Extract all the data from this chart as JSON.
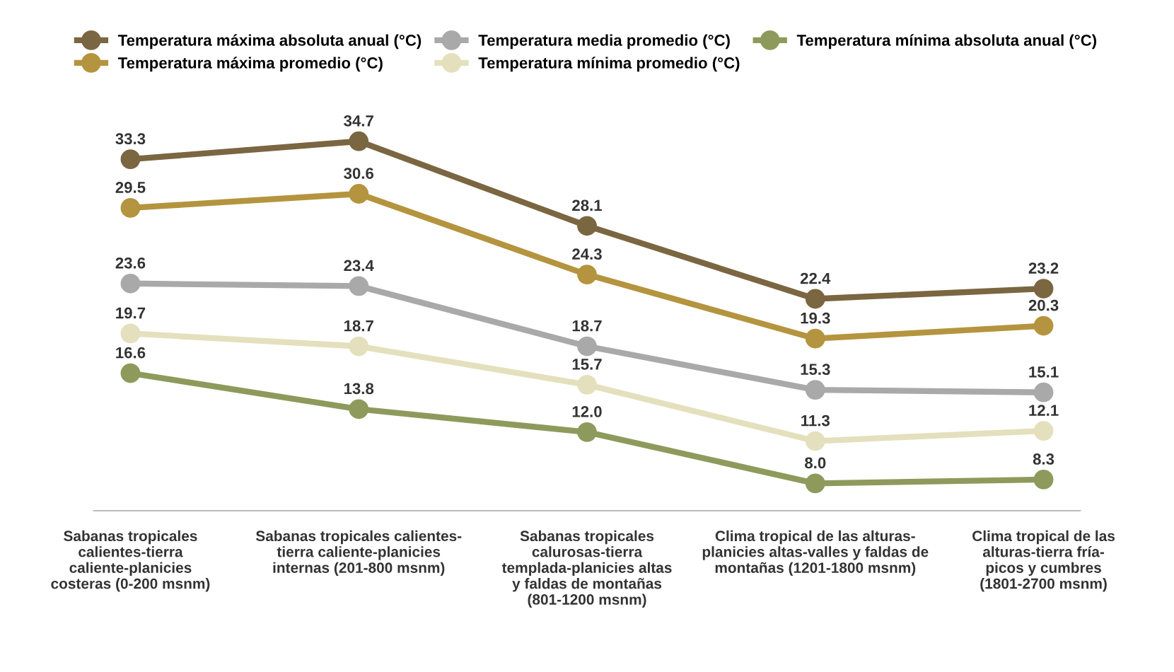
{
  "chart_data": {
    "type": "line",
    "categories": [
      "Sabanas tropicales\ncalientes-tierra\ncaliente-planicies\ncosteras (0-200 msnm)",
      "Sabanas tropicales calientes-\ntierra caliente-planicies\ninternas (201-800 msnm)",
      "Sabanas tropicales\ncalurosas-tierra\ntemplada-planicies altas\ny faldas de montañas\n(801-1200 msnm)",
      "Clima tropical de las alturas-\nplanicies altas-valles y faldas de\nmontañas (1201-1800 msnm)",
      "Clima tropical de las\nalturas-tierra fría-\npicos y cumbres\n(1801-2700 msnm)"
    ],
    "series": [
      {
        "name": "Temperatura máxima absoluta anual (°C)",
        "color": "#7b6642",
        "values": [
          33.3,
          34.7,
          28.1,
          22.4,
          23.2
        ]
      },
      {
        "name": "Temperatura máxima promedio (°C)",
        "color": "#b4943e",
        "values": [
          29.5,
          30.6,
          24.3,
          19.3,
          20.3
        ]
      },
      {
        "name": "Temperatura media promedio (°C)",
        "color": "#a9a9aa",
        "values": [
          23.6,
          23.4,
          18.7,
          15.3,
          15.1
        ]
      },
      {
        "name": "Temperatura mínima promedio (°C)",
        "color": "#e4e0bd",
        "values": [
          19.7,
          18.7,
          15.7,
          11.3,
          12.1
        ]
      },
      {
        "name": "Temperatura mínima absoluta anual (°C)",
        "color": "#8e9a5c",
        "values": [
          16.6,
          13.8,
          12.0,
          8.0,
          8.3
        ],
        "value_labels": [
          "16.6",
          "13.8",
          "12.0",
          "8.0",
          "8.3"
        ]
      }
    ],
    "data_labels": true,
    "marker": "circle",
    "line_style": "solid",
    "grid": false,
    "legend": "top",
    "tick_labels": "x"
  }
}
